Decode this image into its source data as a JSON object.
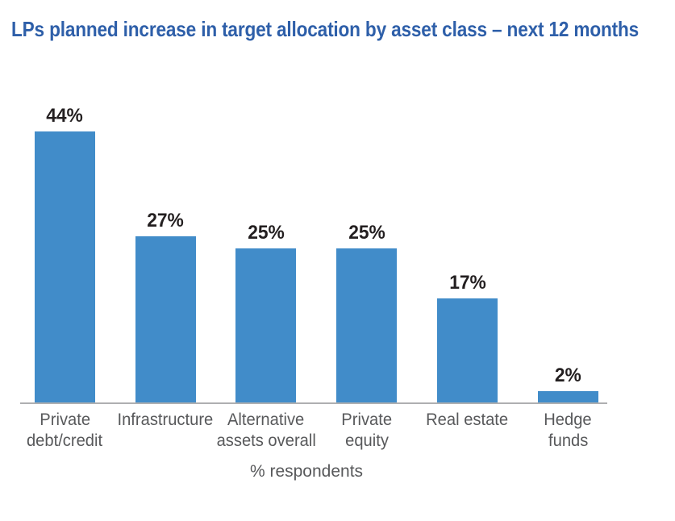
{
  "title": "LPs planned increase in target allocation by asset class – next 12 months",
  "chart_data": {
    "type": "bar",
    "title": "LPs planned increase in target allocation by asset class – next 12 months",
    "categories": [
      "Private debt/credit",
      "Infrastructure",
      "Alternative assets overall",
      "Private equity",
      "Real estate",
      "Hedge funds"
    ],
    "category_lines": [
      [
        "Private",
        "debt/credit"
      ],
      [
        "Infrastructure"
      ],
      [
        "Alternative",
        "assets overall"
      ],
      [
        "Private",
        "equity"
      ],
      [
        "Real estate"
      ],
      [
        "Hedge",
        "funds"
      ]
    ],
    "values": [
      44,
      27,
      25,
      25,
      17,
      2
    ],
    "value_labels": [
      "44%",
      "27%",
      "25%",
      "25%",
      "17%",
      "2%"
    ],
    "xlabel": "% respondents",
    "ylabel": "",
    "ylim": [
      0,
      47
    ],
    "grid": false,
    "legend": "none",
    "bar_color": "#418CC9"
  },
  "colors": {
    "title_text": "#2E5FA9",
    "bar_fill": "#418CC9",
    "value_text": "#231F20",
    "axis_label_text": "#58595B",
    "axis_line": "#AEAFB1",
    "background": "#FFFFFF"
  }
}
